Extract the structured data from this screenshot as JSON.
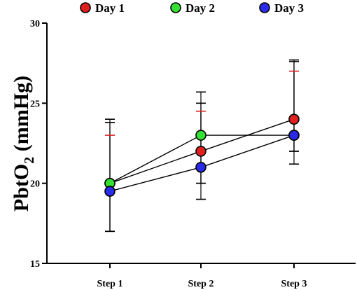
{
  "chart_data": {
    "type": "line",
    "categories": [
      "Step 1",
      "Step 2",
      "Step 3"
    ],
    "ylabel_main": "PbtO",
    "ylabel_sub": "2",
    "ylabel_unit": " (mmHg)",
    "ylim": [
      15,
      30
    ],
    "yticks": [
      15,
      20,
      25,
      30
    ],
    "grid": false,
    "legend_position": "top",
    "series": [
      {
        "name": "Day 1",
        "color": "#e02020",
        "values": [
          20,
          22,
          24
        ],
        "error_upper": [
          23,
          24.5,
          27
        ],
        "error_lower": [
          17,
          20,
          22
        ]
      },
      {
        "name": "Day 2",
        "color": "#33e033",
        "values": [
          20,
          23,
          23
        ],
        "error_upper": [
          23.8,
          25,
          27.6
        ],
        "error_lower": [
          17,
          20,
          22
        ]
      },
      {
        "name": "Day 3",
        "color": "#2a2ae8",
        "values": [
          19.5,
          21,
          23
        ],
        "error_upper": [
          24,
          25.7,
          27.7
        ],
        "error_lower": [
          17,
          19,
          21.2
        ]
      }
    ]
  }
}
